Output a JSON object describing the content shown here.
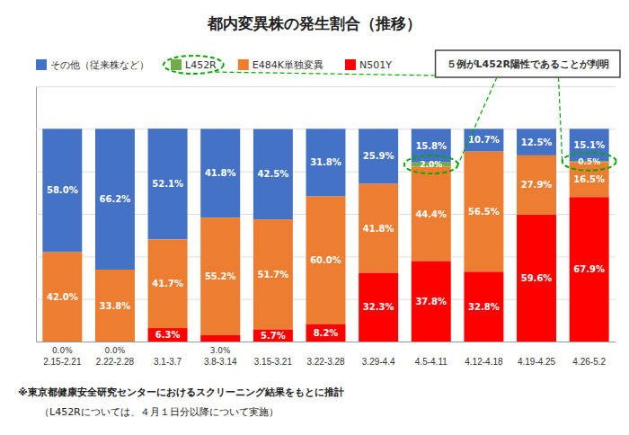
{
  "chart_data": {
    "type": "bar",
    "title": "都内変異株の発生割合（推移）",
    "categories": [
      "2.15-2.21",
      "2.22-2.28",
      "3.1-3.7",
      "3.8-3.14",
      "3.15-3.21",
      "3.22-3.28",
      "3.29-4.4",
      "4.5-4.11",
      "4.12-4.18",
      "4.19-4.25",
      "4.26-5.2"
    ],
    "stacked": true,
    "series": [
      {
        "name": "その他（従来株など）",
        "color": "#4472C4",
        "values": [
          58.0,
          66.2,
          52.1,
          41.8,
          42.5,
          31.8,
          25.9,
          15.8,
          10.7,
          12.5,
          15.1
        ],
        "value_labels": [
          "58.0%",
          "66.2%",
          "52.1%",
          "41.8%",
          "42.5%",
          "31.8%",
          "25.9%",
          "15.8%",
          "10.7%",
          "12.5%",
          "15.1%"
        ]
      },
      {
        "name": "L452R",
        "color": "#70AD47",
        "values": [
          0.0,
          0.0,
          0.0,
          0.0,
          0.0,
          0.0,
          0.0,
          2.0,
          0.0,
          0.0,
          0.5
        ],
        "value_labels": [
          null,
          null,
          null,
          null,
          null,
          null,
          null,
          "2.0%",
          null,
          null,
          "0.5%"
        ]
      },
      {
        "name": "E484K単独変異",
        "color": "#ED7D31",
        "values": [
          42.0,
          33.8,
          41.7,
          55.2,
          51.7,
          60.0,
          41.8,
          44.4,
          56.5,
          27.9,
          16.5
        ],
        "value_labels": [
          "42.0%",
          "33.8%",
          "41.7%",
          "55.2%",
          "51.7%",
          "60.0%",
          "41.8%",
          "44.4%",
          "56.5%",
          "27.9%",
          "16.5%"
        ]
      },
      {
        "name": "N501Y",
        "color": "#FF0000",
        "values": [
          0.0,
          0.0,
          6.3,
          3.0,
          5.7,
          8.2,
          32.3,
          37.8,
          32.8,
          59.6,
          67.9
        ],
        "value_labels": [
          "0.0%",
          "0.0%",
          "6.3%",
          "3.0%",
          "5.7%",
          "8.2%",
          "32.3%",
          "37.8%",
          "32.8%",
          "59.6%",
          "67.9%"
        ]
      }
    ],
    "ylim": [
      0,
      120
    ],
    "yticks": [
      0,
      20,
      40,
      60,
      80,
      100,
      120
    ],
    "grid": true,
    "tick_labels": "x",
    "legend": "upper left",
    "data_labels": true,
    "annotations": [
      "５例がL452R陽性であることが判明"
    ],
    "notes": [
      "※東京都健康安全研究センターにおけるスクリーニング結果をもとに推計",
      "（L452Rについては、４月１日分以降について実施）"
    ]
  }
}
